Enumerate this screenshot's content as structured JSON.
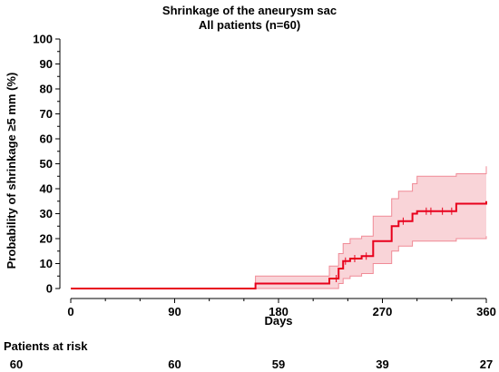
{
  "chart_data": {
    "type": "line",
    "title": "Shrinkage of the aneurysm sac",
    "subtitle": "All patients (n=60)",
    "xlabel": "Days",
    "ylabel": "Probability of shrinkage ≥5 mm (%)",
    "xlim": [
      0,
      360
    ],
    "ylim": [
      0,
      100
    ],
    "x_ticks": [
      "0",
      "90",
      "180",
      "270",
      "360"
    ],
    "y_ticks": [
      "0",
      "10",
      "20",
      "30",
      "40",
      "50",
      "60",
      "70",
      "80",
      "90",
      "100"
    ],
    "grid": false,
    "line_color": "#e8001c",
    "band_color": "#f9d4d8",
    "series": [
      {
        "x": [
          0,
          160,
          160,
          224,
          224,
          232,
          232,
          236,
          236,
          242,
          242,
          252,
          252,
          262,
          262,
          278,
          278,
          284,
          284,
          296,
          296,
          300,
          300,
          334,
          334,
          360,
          360
        ],
        "y": [
          0,
          0,
          2,
          2,
          4,
          4,
          8,
          8,
          11,
          11,
          12,
          12,
          13,
          13,
          19,
          19,
          25,
          25,
          27,
          27,
          30,
          30,
          31,
          31,
          34,
          34,
          35
        ],
        "ci_upper": [
          0,
          0,
          5,
          5,
          9,
          9,
          14,
          14,
          18,
          18,
          20,
          20,
          21,
          21,
          29,
          29,
          36,
          36,
          39,
          39,
          42,
          42,
          45,
          45,
          46,
          46,
          49
        ],
        "ci_lower": [
          0,
          0,
          0,
          0,
          0,
          0,
          2,
          2,
          4,
          4,
          5,
          5,
          6,
          6,
          10,
          10,
          15,
          15,
          17,
          17,
          19,
          19,
          19,
          19,
          20,
          20,
          21
        ],
        "censor_x": [
          230,
          238,
          246,
          256,
          288,
          308,
          312,
          322,
          330
        ]
      }
    ],
    "risk_table": {
      "label": "Patients at risk",
      "times": [
        0,
        90,
        180,
        270,
        360
      ],
      "values": [
        "60",
        "60",
        "59",
        "39",
        "27"
      ]
    }
  }
}
